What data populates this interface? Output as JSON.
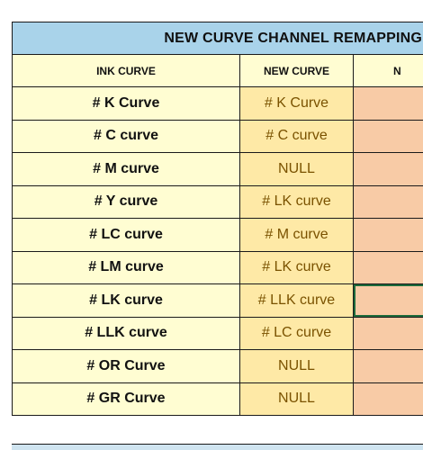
{
  "title": "NEW CURVE CHANNEL REMAPPING",
  "columns": {
    "ink_curve": "INK CURVE",
    "new_curve": "NEW CURVE",
    "third_partial": "N"
  },
  "rows": [
    {
      "ink": "# K Curve",
      "new": "# K Curve"
    },
    {
      "ink": "# C curve",
      "new": "# C curve"
    },
    {
      "ink": "# M curve",
      "new": "NULL"
    },
    {
      "ink": "# Y curve",
      "new": "# LK curve"
    },
    {
      "ink": "# LC curve",
      "new": "# M curve"
    },
    {
      "ink": "# LM curve",
      "new": "# LK curve"
    },
    {
      "ink": "# LK curve",
      "new": "# LLK curve"
    },
    {
      "ink": "# LLK curve",
      "new": "# LC curve"
    },
    {
      "ink": "# OR Curve",
      "new": "NULL"
    },
    {
      "ink": "# GR Curve",
      "new": "NULL"
    }
  ],
  "colors": {
    "title_bg": "#a9d3ea",
    "ink_col_bg": "#fffdd2",
    "new_col_bg": "#fee9a6",
    "third_col_bg": "#f8cba6",
    "selection_border": "#1d6b3b"
  }
}
